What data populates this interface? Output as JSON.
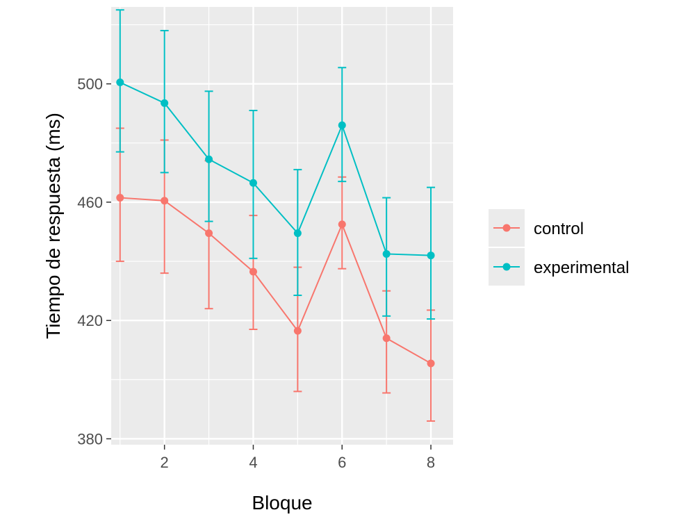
{
  "chart_data": {
    "type": "line",
    "xlabel": "Bloque",
    "ylabel": "Tiempo de respuesta (ms)",
    "xlim": [
      0.8,
      8.5
    ],
    "ylim": [
      378,
      526
    ],
    "x_ticks": [
      2,
      4,
      6,
      8
    ],
    "x_minor": [
      1,
      3,
      5,
      7
    ],
    "y_ticks": [
      380,
      420,
      460,
      500
    ],
    "y_minor": [
      400,
      440,
      480,
      520
    ],
    "x_tick_labels": [
      "2",
      "4",
      "6",
      "8"
    ],
    "y_tick_labels": [
      "380",
      "420",
      "460",
      "500"
    ],
    "grid": true,
    "legend_position": "right",
    "x": [
      1,
      2,
      3,
      4,
      5,
      6,
      7,
      8
    ],
    "series": [
      {
        "name": "control",
        "color": "#f8766d",
        "values": [
          461.5,
          460.5,
          449.5,
          436.5,
          416.5,
          452.5,
          414.0,
          405.5
        ],
        "lower": [
          440,
          436,
          424,
          417,
          396,
          437.5,
          395.5,
          386
        ],
        "upper": [
          485,
          481,
          474,
          455.5,
          438,
          468.5,
          430,
          423.5
        ]
      },
      {
        "name": "experimental",
        "color": "#00bfc4",
        "values": [
          500.5,
          493.5,
          474.5,
          466.5,
          449.5,
          486.0,
          442.5,
          442.0
        ],
        "lower": [
          477,
          470,
          453.5,
          441,
          428.5,
          467,
          421.5,
          420.5
        ],
        "upper": [
          525,
          518,
          497.5,
          491,
          471,
          505.5,
          461.5,
          465
        ]
      }
    ]
  }
}
